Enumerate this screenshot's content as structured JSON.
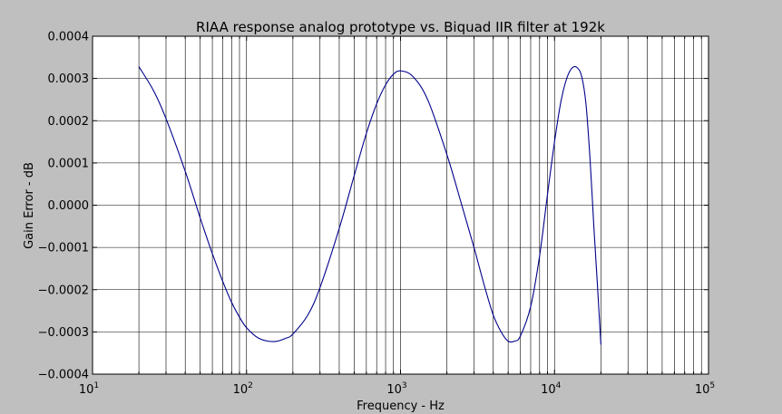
{
  "chart_data": {
    "type": "line",
    "title": "RIAA response analog prototype vs. Biquad IIR filter at 192k",
    "xlabel": "Frequency - Hz",
    "ylabel": "Gain Error - dB",
    "xscale": "log",
    "xlim": [
      10,
      100000
    ],
    "ylim": [
      -0.0004,
      0.0004
    ],
    "grid": true,
    "xticks": [
      {
        "value": 10,
        "base": "10",
        "exp": "1"
      },
      {
        "value": 100,
        "base": "10",
        "exp": "2"
      },
      {
        "value": 1000,
        "base": "10",
        "exp": "3"
      },
      {
        "value": 10000,
        "base": "10",
        "exp": "4"
      },
      {
        "value": 100000,
        "base": "10",
        "exp": "5"
      }
    ],
    "yticks": [
      {
        "value": 0.0004,
        "label": "0.0004"
      },
      {
        "value": 0.0003,
        "label": "0.0003"
      },
      {
        "value": 0.0002,
        "label": "0.0002"
      },
      {
        "value": 0.0001,
        "label": "0.0001"
      },
      {
        "value": 0.0,
        "label": "0.0000"
      },
      {
        "value": -0.0001,
        "label": "−0.0001"
      },
      {
        "value": -0.0002,
        "label": "−0.0002"
      },
      {
        "value": -0.0003,
        "label": "−0.0003"
      },
      {
        "value": -0.0004,
        "label": "−0.0004"
      }
    ],
    "series": [
      {
        "color": "#00008b",
        "x": [
          20,
          25,
          30,
          40,
          50,
          60,
          70,
          80,
          90,
          100,
          120,
          150,
          180,
          200,
          250,
          300,
          400,
          500,
          600,
          700,
          800,
          900,
          1000,
          1200,
          1500,
          2000,
          2500,
          3000,
          3500,
          4000,
          4500,
          5000,
          5500,
          6000,
          7000,
          8000,
          9000,
          10000,
          11000,
          12000,
          13000,
          14000,
          15000,
          16000,
          17000,
          18000,
          19000,
          20000
        ],
        "y": [
          0.000328,
          0.00027,
          0.000205,
          8e-05,
          -3e-05,
          -0.000115,
          -0.00018,
          -0.00023,
          -0.000265,
          -0.00029,
          -0.000315,
          -0.000323,
          -0.000315,
          -0.000305,
          -0.00026,
          -0.000195,
          -5.5e-05,
          7e-05,
          0.00017,
          0.00024,
          0.000285,
          0.00031,
          0.000318,
          0.000305,
          0.00025,
          0.00012,
          0.0,
          -0.0001,
          -0.00019,
          -0.00026,
          -0.0003,
          -0.000322,
          -0.000322,
          -0.00031,
          -0.00024,
          -0.00012,
          2.5e-05,
          0.00015,
          0.000245,
          0.0003,
          0.000325,
          0.000326,
          0.000305,
          0.00024,
          0.00011,
          -5e-05,
          -0.00019,
          -0.00033
        ]
      }
    ]
  }
}
